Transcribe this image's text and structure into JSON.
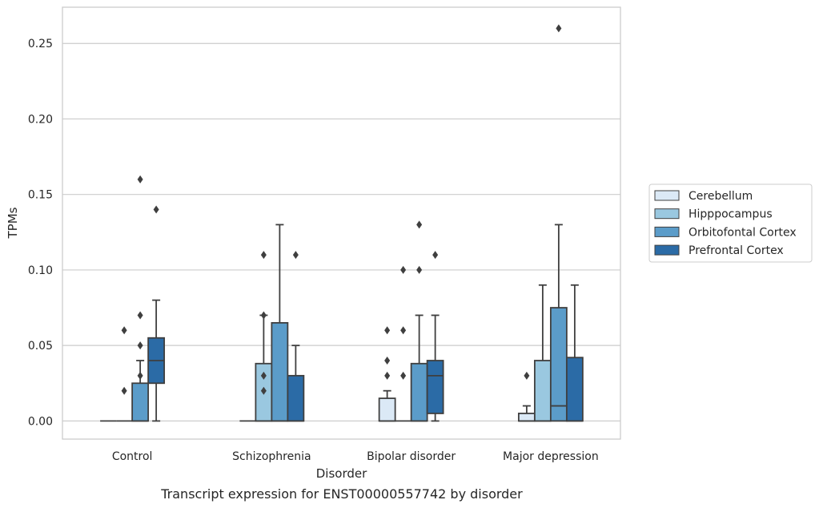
{
  "chart_data": {
    "type": "box",
    "caption": "Transcript expression for ENST00000557742 by disorder",
    "xlabel": "Disorder",
    "ylabel": "TPMs",
    "ylim": [
      -0.012,
      0.274
    ],
    "yticks": [
      0.0,
      0.05,
      0.1,
      0.15,
      0.2,
      0.25
    ],
    "ytick_labels": [
      "0.00",
      "0.05",
      "0.10",
      "0.15",
      "0.20",
      "0.25"
    ],
    "grid": true,
    "legend_position": "right",
    "categories": [
      "Control",
      "Schizophrenia",
      "Bipolar disorder",
      "Major depression"
    ],
    "series": [
      {
        "name": "Cerebellum",
        "color": "#dbe9f6",
        "boxes": [
          {
            "q1": 0.0,
            "median": 0.0,
            "q3": 0.0,
            "whisker_low": 0.0,
            "whisker_high": 0.0,
            "outliers": []
          },
          {
            "q1": 0.0,
            "median": 0.0,
            "q3": 0.0,
            "whisker_low": 0.0,
            "whisker_high": 0.0,
            "outliers": []
          },
          {
            "q1": 0.0,
            "median": 0.0,
            "q3": 0.015,
            "whisker_low": 0.0,
            "whisker_high": 0.02,
            "outliers": [
              0.03,
              0.04,
              0.06
            ]
          },
          {
            "q1": 0.0,
            "median": 0.0,
            "q3": 0.005,
            "whisker_low": 0.0,
            "whisker_high": 0.01,
            "outliers": [
              0.03
            ]
          }
        ]
      },
      {
        "name": "Hipppocampus",
        "color": "#9ac8e0",
        "boxes": [
          {
            "q1": 0.0,
            "median": 0.0,
            "q3": 0.0,
            "whisker_low": 0.0,
            "whisker_high": 0.0,
            "outliers": [
              0.02,
              0.06
            ]
          },
          {
            "q1": 0.0,
            "median": 0.0,
            "q3": 0.038,
            "whisker_low": 0.0,
            "whisker_high": 0.07,
            "outliers": [
              0.11,
              0.02,
              0.03,
              0.07
            ]
          },
          {
            "q1": 0.0,
            "median": 0.0,
            "q3": 0.0,
            "whisker_low": 0.0,
            "whisker_high": 0.0,
            "outliers": [
              0.03,
              0.06,
              0.1
            ]
          },
          {
            "q1": 0.0,
            "median": 0.0,
            "q3": 0.04,
            "whisker_low": 0.0,
            "whisker_high": 0.09,
            "outliers": []
          }
        ]
      },
      {
        "name": "Orbitofontal Cortex",
        "color": "#5b9cc9",
        "boxes": [
          {
            "q1": 0.0,
            "median": 0.0,
            "q3": 0.025,
            "whisker_low": 0.0,
            "whisker_high": 0.04,
            "outliers": [
              0.03,
              0.05,
              0.07,
              0.16
            ]
          },
          {
            "q1": 0.0,
            "median": 0.0,
            "q3": 0.065,
            "whisker_low": 0.0,
            "whisker_high": 0.13,
            "outliers": []
          },
          {
            "q1": 0.0,
            "median": 0.0,
            "q3": 0.038,
            "whisker_low": 0.0,
            "whisker_high": 0.07,
            "outliers": [
              0.1,
              0.13
            ]
          },
          {
            "q1": 0.0,
            "median": 0.01,
            "q3": 0.075,
            "whisker_low": 0.0,
            "whisker_high": 0.13,
            "outliers": [
              0.26
            ]
          }
        ]
      },
      {
        "name": "Prefrontal Cortex",
        "color": "#2b6ba6",
        "boxes": [
          {
            "q1": 0.025,
            "median": 0.04,
            "q3": 0.055,
            "whisker_low": 0.0,
            "whisker_high": 0.08,
            "outliers": [
              0.14
            ]
          },
          {
            "q1": 0.0,
            "median": 0.0,
            "q3": 0.03,
            "whisker_low": 0.0,
            "whisker_high": 0.05,
            "outliers": [
              0.11
            ]
          },
          {
            "q1": 0.005,
            "median": 0.03,
            "q3": 0.04,
            "whisker_low": 0.0,
            "whisker_high": 0.07,
            "outliers": [
              0.11
            ]
          },
          {
            "q1": 0.0,
            "median": 0.0,
            "q3": 0.042,
            "whisker_low": 0.0,
            "whisker_high": 0.09,
            "outliers": []
          }
        ]
      }
    ]
  }
}
